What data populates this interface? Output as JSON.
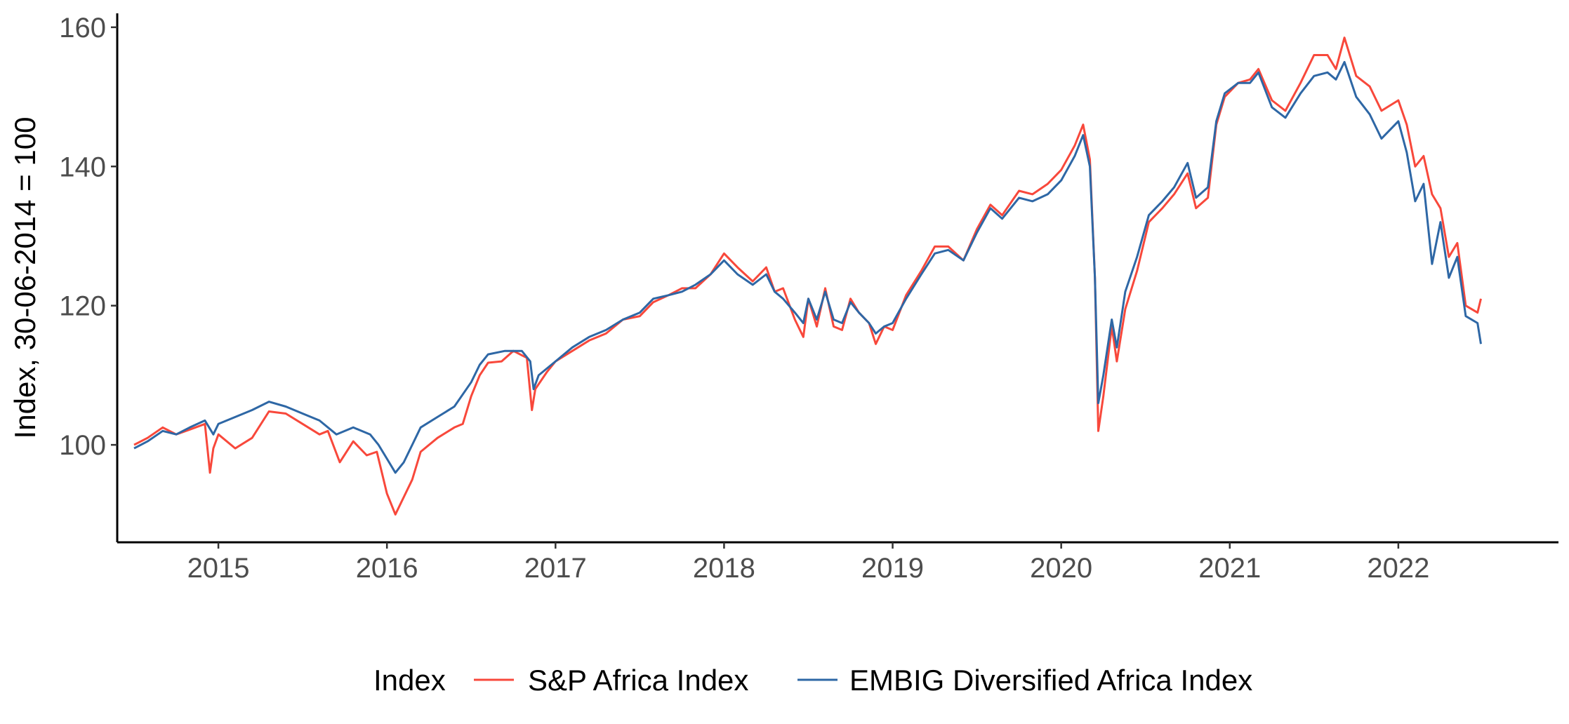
{
  "chart_data": {
    "type": "line",
    "title": "",
    "xlabel": "",
    "ylabel": "Index, 30-06-2014 = 100",
    "xlim": [
      2014.4,
      2022.95
    ],
    "ylim": [
      86,
      162
    ],
    "x_ticks": [
      2015,
      2016,
      2017,
      2018,
      2019,
      2020,
      2021,
      2022
    ],
    "x_tick_labels": [
      "2015",
      "2016",
      "2017",
      "2018",
      "2019",
      "2020",
      "2021",
      "2022"
    ],
    "y_ticks": [
      100,
      120,
      140,
      160
    ],
    "y_tick_labels": [
      "100",
      "120",
      "140",
      "160"
    ],
    "grid": false,
    "legend": {
      "title": "Index",
      "position": "bottom",
      "entries": [
        "S&P Africa Index",
        "EMBIG Diversified Africa Index"
      ]
    },
    "series": [
      {
        "name": "S&P Africa Index",
        "color": "#F8483B",
        "points": [
          [
            2014.5,
            100
          ],
          [
            2014.58,
            101
          ],
          [
            2014.67,
            102.5
          ],
          [
            2014.75,
            101.5
          ],
          [
            2014.83,
            102.2
          ],
          [
            2014.92,
            103
          ],
          [
            2014.95,
            96
          ],
          [
            2014.97,
            99.5
          ],
          [
            2015.0,
            101.5
          ],
          [
            2015.1,
            99.5
          ],
          [
            2015.2,
            101
          ],
          [
            2015.3,
            104.8
          ],
          [
            2015.4,
            104.5
          ],
          [
            2015.5,
            103
          ],
          [
            2015.6,
            101.5
          ],
          [
            2015.65,
            102
          ],
          [
            2015.72,
            97.5
          ],
          [
            2015.8,
            100.5
          ],
          [
            2015.88,
            98.5
          ],
          [
            2015.94,
            99
          ],
          [
            2016.0,
            93
          ],
          [
            2016.05,
            90
          ],
          [
            2016.1,
            92.5
          ],
          [
            2016.15,
            95
          ],
          [
            2016.2,
            99
          ],
          [
            2016.3,
            101
          ],
          [
            2016.4,
            102.5
          ],
          [
            2016.45,
            103
          ],
          [
            2016.5,
            107
          ],
          [
            2016.55,
            110
          ],
          [
            2016.6,
            111.8
          ],
          [
            2016.68,
            112
          ],
          [
            2016.75,
            113.5
          ],
          [
            2016.83,
            112.5
          ],
          [
            2016.86,
            105
          ],
          [
            2016.88,
            108
          ],
          [
            2016.95,
            110.5
          ],
          [
            2017.0,
            112
          ],
          [
            2017.1,
            113.5
          ],
          [
            2017.2,
            115
          ],
          [
            2017.3,
            116
          ],
          [
            2017.4,
            118
          ],
          [
            2017.5,
            118.5
          ],
          [
            2017.58,
            120.5
          ],
          [
            2017.67,
            121.5
          ],
          [
            2017.75,
            122.5
          ],
          [
            2017.83,
            122.5
          ],
          [
            2017.92,
            124.5
          ],
          [
            2018.0,
            127.5
          ],
          [
            2018.08,
            125.5
          ],
          [
            2018.17,
            123.5
          ],
          [
            2018.25,
            125.5
          ],
          [
            2018.3,
            122
          ],
          [
            2018.35,
            122.5
          ],
          [
            2018.42,
            118
          ],
          [
            2018.47,
            115.5
          ],
          [
            2018.5,
            121
          ],
          [
            2018.55,
            117
          ],
          [
            2018.6,
            122.5
          ],
          [
            2018.65,
            117
          ],
          [
            2018.7,
            116.5
          ],
          [
            2018.75,
            121
          ],
          [
            2018.8,
            119
          ],
          [
            2018.86,
            117.5
          ],
          [
            2018.9,
            114.5
          ],
          [
            2018.95,
            117
          ],
          [
            2019.0,
            116.5
          ],
          [
            2019.08,
            121.5
          ],
          [
            2019.17,
            125
          ],
          [
            2019.25,
            128.5
          ],
          [
            2019.33,
            128.5
          ],
          [
            2019.42,
            126.5
          ],
          [
            2019.5,
            131
          ],
          [
            2019.58,
            134.5
          ],
          [
            2019.65,
            133
          ],
          [
            2019.75,
            136.5
          ],
          [
            2019.83,
            136
          ],
          [
            2019.92,
            137.5
          ],
          [
            2020.0,
            139.5
          ],
          [
            2020.08,
            143
          ],
          [
            2020.13,
            146
          ],
          [
            2020.17,
            141
          ],
          [
            2020.2,
            124
          ],
          [
            2020.22,
            102
          ],
          [
            2020.25,
            107
          ],
          [
            2020.3,
            117
          ],
          [
            2020.33,
            112
          ],
          [
            2020.38,
            119.5
          ],
          [
            2020.45,
            125
          ],
          [
            2020.52,
            132
          ],
          [
            2020.6,
            134
          ],
          [
            2020.67,
            136
          ],
          [
            2020.75,
            139
          ],
          [
            2020.8,
            134
          ],
          [
            2020.87,
            135.5
          ],
          [
            2020.92,
            146
          ],
          [
            2020.97,
            150
          ],
          [
            2021.05,
            152
          ],
          [
            2021.12,
            152.5
          ],
          [
            2021.17,
            154
          ],
          [
            2021.25,
            149.5
          ],
          [
            2021.33,
            148
          ],
          [
            2021.42,
            152
          ],
          [
            2021.5,
            156
          ],
          [
            2021.58,
            156
          ],
          [
            2021.63,
            154
          ],
          [
            2021.68,
            158.5
          ],
          [
            2021.75,
            153
          ],
          [
            2021.83,
            151.5
          ],
          [
            2021.9,
            148
          ],
          [
            2022.0,
            149.5
          ],
          [
            2022.05,
            146
          ],
          [
            2022.1,
            140
          ],
          [
            2022.15,
            141.5
          ],
          [
            2022.2,
            136
          ],
          [
            2022.25,
            134
          ],
          [
            2022.3,
            127
          ],
          [
            2022.35,
            129
          ],
          [
            2022.4,
            120
          ],
          [
            2022.47,
            119
          ],
          [
            2022.49,
            121
          ]
        ]
      },
      {
        "name": "EMBIG Diversified Africa Index",
        "color": "#2E67A5",
        "points": [
          [
            2014.5,
            99.5
          ],
          [
            2014.58,
            100.5
          ],
          [
            2014.67,
            102
          ],
          [
            2014.75,
            101.5
          ],
          [
            2014.83,
            102.5
          ],
          [
            2014.92,
            103.5
          ],
          [
            2014.97,
            101.5
          ],
          [
            2015.0,
            103
          ],
          [
            2015.1,
            104
          ],
          [
            2015.2,
            105
          ],
          [
            2015.3,
            106.2
          ],
          [
            2015.4,
            105.5
          ],
          [
            2015.5,
            104.5
          ],
          [
            2015.6,
            103.5
          ],
          [
            2015.7,
            101.5
          ],
          [
            2015.8,
            102.5
          ],
          [
            2015.9,
            101.5
          ],
          [
            2015.95,
            100
          ],
          [
            2016.0,
            98
          ],
          [
            2016.05,
            96
          ],
          [
            2016.1,
            97.5
          ],
          [
            2016.15,
            100
          ],
          [
            2016.2,
            102.5
          ],
          [
            2016.3,
            104
          ],
          [
            2016.4,
            105.5
          ],
          [
            2016.5,
            109
          ],
          [
            2016.55,
            111.5
          ],
          [
            2016.6,
            113
          ],
          [
            2016.7,
            113.5
          ],
          [
            2016.8,
            113.5
          ],
          [
            2016.85,
            112
          ],
          [
            2016.87,
            108
          ],
          [
            2016.9,
            110
          ],
          [
            2017.0,
            112
          ],
          [
            2017.1,
            114
          ],
          [
            2017.2,
            115.5
          ],
          [
            2017.3,
            116.5
          ],
          [
            2017.4,
            118
          ],
          [
            2017.5,
            119
          ],
          [
            2017.58,
            121
          ],
          [
            2017.67,
            121.5
          ],
          [
            2017.75,
            122
          ],
          [
            2017.83,
            123
          ],
          [
            2017.92,
            124.5
          ],
          [
            2018.0,
            126.5
          ],
          [
            2018.08,
            124.5
          ],
          [
            2018.17,
            123
          ],
          [
            2018.25,
            124.5
          ],
          [
            2018.3,
            122
          ],
          [
            2018.35,
            121
          ],
          [
            2018.42,
            119
          ],
          [
            2018.47,
            117.5
          ],
          [
            2018.5,
            121
          ],
          [
            2018.55,
            118
          ],
          [
            2018.6,
            122
          ],
          [
            2018.65,
            118
          ],
          [
            2018.7,
            117.5
          ],
          [
            2018.75,
            120.5
          ],
          [
            2018.8,
            119
          ],
          [
            2018.86,
            117.5
          ],
          [
            2018.9,
            116
          ],
          [
            2018.95,
            117
          ],
          [
            2019.0,
            117.5
          ],
          [
            2019.08,
            121
          ],
          [
            2019.17,
            124.5
          ],
          [
            2019.25,
            127.5
          ],
          [
            2019.33,
            128
          ],
          [
            2019.42,
            126.5
          ],
          [
            2019.5,
            130.5
          ],
          [
            2019.58,
            134
          ],
          [
            2019.65,
            132.5
          ],
          [
            2019.75,
            135.5
          ],
          [
            2019.83,
            135
          ],
          [
            2019.92,
            136
          ],
          [
            2020.0,
            138
          ],
          [
            2020.08,
            141.5
          ],
          [
            2020.13,
            144.5
          ],
          [
            2020.17,
            140
          ],
          [
            2020.2,
            124
          ],
          [
            2020.22,
            106
          ],
          [
            2020.25,
            110
          ],
          [
            2020.3,
            118
          ],
          [
            2020.33,
            114
          ],
          [
            2020.38,
            122
          ],
          [
            2020.45,
            127
          ],
          [
            2020.52,
            133
          ],
          [
            2020.6,
            135
          ],
          [
            2020.67,
            137
          ],
          [
            2020.75,
            140.5
          ],
          [
            2020.8,
            135.5
          ],
          [
            2020.87,
            137
          ],
          [
            2020.92,
            146.5
          ],
          [
            2020.97,
            150.5
          ],
          [
            2021.05,
            152
          ],
          [
            2021.12,
            152
          ],
          [
            2021.17,
            153.5
          ],
          [
            2021.25,
            148.5
          ],
          [
            2021.33,
            147
          ],
          [
            2021.42,
            150.5
          ],
          [
            2021.5,
            153
          ],
          [
            2021.58,
            153.5
          ],
          [
            2021.63,
            152.5
          ],
          [
            2021.68,
            155
          ],
          [
            2021.75,
            150
          ],
          [
            2021.83,
            147.5
          ],
          [
            2021.9,
            144
          ],
          [
            2022.0,
            146.5
          ],
          [
            2022.05,
            142
          ],
          [
            2022.1,
            135
          ],
          [
            2022.15,
            137.5
          ],
          [
            2022.2,
            126
          ],
          [
            2022.25,
            132
          ],
          [
            2022.3,
            124
          ],
          [
            2022.35,
            127
          ],
          [
            2022.4,
            118.5
          ],
          [
            2022.47,
            117.5
          ],
          [
            2022.49,
            114.5
          ]
        ]
      }
    ]
  }
}
